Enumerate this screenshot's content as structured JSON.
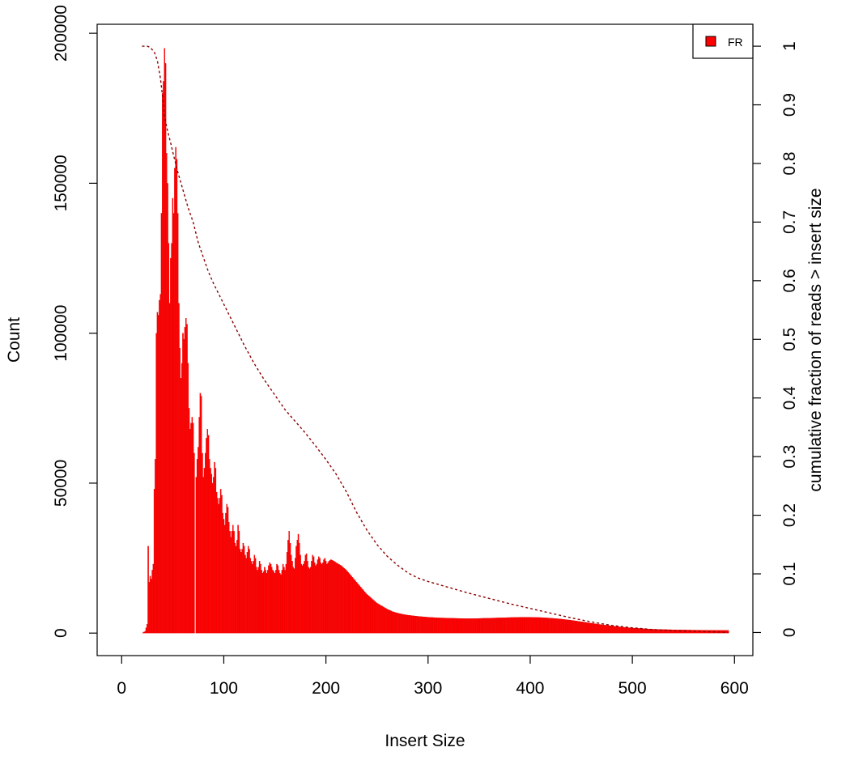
{
  "chart_data": {
    "type": "bar",
    "title": "",
    "xlabel": "Insert Size",
    "ylabel": "Count",
    "y2label": "cumulative fraction of reads > insert size",
    "xlim": [
      -24,
      618
    ],
    "ylim": [
      -7500,
      203000
    ],
    "y2lim": [
      -0.0394,
      1.0374
    ],
    "x_ticks": [
      0,
      100,
      200,
      300,
      400,
      500,
      600
    ],
    "y_ticks": [
      0,
      50000,
      100000,
      150000,
      200000
    ],
    "y2_ticks": [
      0,
      0.1,
      0.2,
      0.3,
      0.4,
      0.5,
      0.6,
      0.7,
      0.8,
      0.9,
      1
    ],
    "grid": false,
    "legend_position": "top-right",
    "bar_color": "#ff0000",
    "bar_outline_color": "#e00000",
    "cumulative_line_color": "#8b0000",
    "series": [
      {
        "name": "FR",
        "anchors": [
          [
            20,
            0
          ],
          [
            23,
            600
          ],
          [
            25,
            3000
          ],
          [
            26,
            29000
          ],
          [
            27,
            17000
          ],
          [
            28,
            19000
          ],
          [
            29,
            18000
          ],
          [
            30,
            21000
          ],
          [
            31,
            23000
          ],
          [
            32,
            48000
          ],
          [
            33,
            58000
          ],
          [
            34,
            100000
          ],
          [
            35,
            107000
          ],
          [
            36,
            106000
          ],
          [
            37,
            111000
          ],
          [
            38,
            113000
          ],
          [
            39,
            140000
          ],
          [
            40,
            180000
          ],
          [
            41,
            184000
          ],
          [
            42,
            195000
          ],
          [
            43,
            190000
          ],
          [
            44,
            160000
          ],
          [
            45,
            150000
          ],
          [
            46,
            130000
          ],
          [
            47,
            110000
          ],
          [
            48,
            125000
          ],
          [
            49,
            130000
          ],
          [
            50,
            145000
          ],
          [
            51,
            140000
          ],
          [
            52,
            155000
          ],
          [
            53,
            162000
          ],
          [
            54,
            158000
          ],
          [
            55,
            140000
          ],
          [
            56,
            110000
          ],
          [
            57,
            95000
          ],
          [
            58,
            85000
          ],
          [
            59,
            90000
          ],
          [
            60,
            100000
          ],
          [
            61,
            98000
          ],
          [
            62,
            102000
          ],
          [
            63,
            105000
          ],
          [
            64,
            103000
          ],
          [
            65,
            90000
          ],
          [
            66,
            75000
          ],
          [
            67,
            68000
          ],
          [
            68,
            70000
          ],
          [
            69,
            72000
          ],
          [
            70,
            70000
          ],
          [
            71,
            60000
          ],
          [
            72,
            0
          ],
          [
            73,
            52000
          ],
          [
            74,
            58000
          ],
          [
            75,
            62000
          ],
          [
            76,
            72000
          ],
          [
            77,
            80000
          ],
          [
            78,
            79000
          ],
          [
            79,
            60000
          ],
          [
            80,
            52000
          ],
          [
            81,
            55000
          ],
          [
            82,
            60000
          ],
          [
            83,
            65000
          ],
          [
            84,
            68000
          ],
          [
            85,
            66000
          ],
          [
            86,
            58000
          ],
          [
            87,
            55000
          ],
          [
            88,
            53000
          ],
          [
            89,
            50000
          ],
          [
            90,
            52000
          ],
          [
            91,
            57000
          ],
          [
            92,
            55000
          ],
          [
            93,
            47000
          ],
          [
            94,
            45000
          ],
          [
            95,
            43000
          ],
          [
            96,
            45000
          ],
          [
            97,
            48000
          ],
          [
            98,
            46000
          ],
          [
            99,
            40000
          ],
          [
            100,
            38000
          ],
          [
            101,
            36000
          ],
          [
            102,
            40000
          ],
          [
            103,
            43000
          ],
          [
            104,
            42000
          ],
          [
            105,
            37000
          ],
          [
            106,
            34000
          ],
          [
            107,
            32000
          ],
          [
            108,
            34000
          ],
          [
            109,
            36000
          ],
          [
            110,
            34000
          ],
          [
            111,
            30000
          ],
          [
            112,
            29000
          ],
          [
            113,
            31000
          ],
          [
            114,
            36000
          ],
          [
            115,
            34000
          ],
          [
            116,
            28000
          ],
          [
            117,
            27000
          ],
          [
            118,
            28000
          ],
          [
            119,
            30000
          ],
          [
            120,
            29000
          ],
          [
            121,
            26000
          ],
          [
            122,
            25000
          ],
          [
            123,
            27000
          ],
          [
            124,
            29000
          ],
          [
            125,
            28000
          ],
          [
            126,
            25000
          ],
          [
            127,
            24000
          ],
          [
            128,
            23000
          ],
          [
            129,
            24000
          ],
          [
            130,
            26000
          ],
          [
            131,
            25000
          ],
          [
            132,
            22000
          ],
          [
            133,
            21000
          ],
          [
            134,
            22000
          ],
          [
            135,
            24000
          ],
          [
            136,
            23000
          ],
          [
            137,
            21000
          ],
          [
            138,
            20000
          ],
          [
            139,
            20500
          ],
          [
            140,
            22000
          ],
          [
            141,
            21000
          ],
          [
            142,
            20000
          ],
          [
            143,
            21000
          ],
          [
            144,
            22500
          ],
          [
            145,
            23500
          ],
          [
            146,
            23000
          ],
          [
            147,
            22000
          ],
          [
            148,
            21000
          ],
          [
            149,
            20500
          ],
          [
            150,
            20000
          ],
          [
            151,
            21000
          ],
          [
            152,
            23000
          ],
          [
            153,
            22500
          ],
          [
            154,
            21000
          ],
          [
            155,
            20000
          ],
          [
            156,
            19500
          ],
          [
            157,
            21000
          ],
          [
            158,
            23000
          ],
          [
            159,
            22000
          ],
          [
            160,
            21000
          ],
          [
            161,
            23000
          ],
          [
            162,
            27000
          ],
          [
            163,
            31000
          ],
          [
            164,
            34000
          ],
          [
            165,
            30000
          ],
          [
            166,
            26000
          ],
          [
            167,
            24000
          ],
          [
            168,
            22000
          ],
          [
            169,
            21500
          ],
          [
            170,
            25000
          ],
          [
            171,
            29000
          ],
          [
            172,
            31000
          ],
          [
            173,
            33000
          ],
          [
            174,
            30000
          ],
          [
            175,
            26000
          ],
          [
            176,
            23000
          ],
          [
            177,
            22500
          ],
          [
            178,
            23000
          ],
          [
            179,
            24000
          ],
          [
            180,
            26000
          ],
          [
            181,
            26500
          ],
          [
            182,
            24000
          ],
          [
            183,
            22000
          ],
          [
            184,
            21500
          ],
          [
            185,
            22000
          ],
          [
            186,
            24000
          ],
          [
            187,
            26000
          ],
          [
            188,
            25500
          ],
          [
            189,
            23500
          ],
          [
            190,
            22500
          ],
          [
            191,
            23000
          ],
          [
            192,
            24500
          ],
          [
            193,
            25500
          ],
          [
            194,
            25000
          ],
          [
            195,
            23500
          ],
          [
            196,
            23000
          ],
          [
            197,
            23500
          ],
          [
            198,
            24500
          ],
          [
            199,
            25000
          ],
          [
            200,
            24000
          ],
          [
            201,
            23000
          ],
          [
            202,
            23500
          ],
          [
            203,
            24000
          ],
          [
            205,
            24500
          ],
          [
            208,
            24000
          ],
          [
            210,
            23500
          ],
          [
            215,
            22500
          ],
          [
            220,
            21000
          ],
          [
            225,
            19000
          ],
          [
            230,
            17000
          ],
          [
            235,
            15000
          ],
          [
            240,
            13000
          ],
          [
            245,
            11500
          ],
          [
            250,
            10000
          ],
          [
            255,
            9000
          ],
          [
            260,
            8000
          ],
          [
            265,
            7200
          ],
          [
            270,
            6700
          ],
          [
            275,
            6300
          ],
          [
            280,
            6000
          ],
          [
            290,
            5600
          ],
          [
            300,
            5300
          ],
          [
            310,
            5100
          ],
          [
            320,
            5000
          ],
          [
            330,
            4900
          ],
          [
            340,
            4850
          ],
          [
            350,
            4900
          ],
          [
            360,
            5000
          ],
          [
            370,
            5100
          ],
          [
            380,
            5200
          ],
          [
            390,
            5300
          ],
          [
            400,
            5300
          ],
          [
            410,
            5200
          ],
          [
            420,
            5000
          ],
          [
            430,
            4700
          ],
          [
            440,
            4300
          ],
          [
            450,
            3800
          ],
          [
            460,
            3300
          ],
          [
            470,
            2800
          ],
          [
            480,
            2400
          ],
          [
            490,
            2000
          ],
          [
            500,
            1700
          ],
          [
            520,
            1300
          ],
          [
            540,
            1100
          ],
          [
            560,
            1000
          ],
          [
            580,
            950
          ],
          [
            594,
            900
          ]
        ]
      },
      {
        "name": "",
        "kind": "cumulative_fraction_line",
        "axis": "y2",
        "points": [
          [
            20,
            1.0
          ],
          [
            25,
            1.0
          ],
          [
            28,
            0.998
          ],
          [
            32,
            0.99
          ],
          [
            35,
            0.975
          ],
          [
            38,
            0.945
          ],
          [
            40,
            0.915
          ],
          [
            42,
            0.88
          ],
          [
            45,
            0.855
          ],
          [
            48,
            0.835
          ],
          [
            50,
            0.82
          ],
          [
            55,
            0.785
          ],
          [
            60,
            0.755
          ],
          [
            65,
            0.725
          ],
          [
            70,
            0.7
          ],
          [
            75,
            0.665
          ],
          [
            80,
            0.64
          ],
          [
            85,
            0.615
          ],
          [
            90,
            0.595
          ],
          [
            100,
            0.56
          ],
          [
            110,
            0.525
          ],
          [
            120,
            0.49
          ],
          [
            130,
            0.458
          ],
          [
            140,
            0.43
          ],
          [
            150,
            0.405
          ],
          [
            160,
            0.38
          ],
          [
            170,
            0.36
          ],
          [
            180,
            0.34
          ],
          [
            190,
            0.318
          ],
          [
            200,
            0.295
          ],
          [
            210,
            0.27
          ],
          [
            220,
            0.24
          ],
          [
            230,
            0.205
          ],
          [
            240,
            0.175
          ],
          [
            250,
            0.15
          ],
          [
            260,
            0.13
          ],
          [
            270,
            0.115
          ],
          [
            280,
            0.102
          ],
          [
            290,
            0.093
          ],
          [
            300,
            0.087
          ],
          [
            320,
            0.077
          ],
          [
            340,
            0.067
          ],
          [
            360,
            0.058
          ],
          [
            380,
            0.049
          ],
          [
            400,
            0.041
          ],
          [
            420,
            0.033
          ],
          [
            440,
            0.025
          ],
          [
            460,
            0.018
          ],
          [
            480,
            0.012
          ],
          [
            500,
            0.008
          ],
          [
            520,
            0.005
          ],
          [
            540,
            0.003
          ],
          [
            560,
            0.002
          ],
          [
            580,
            0.001
          ],
          [
            594,
            0.0
          ]
        ]
      }
    ]
  }
}
